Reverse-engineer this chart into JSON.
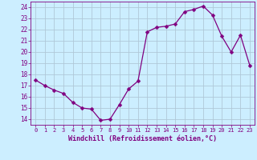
{
  "x": [
    0,
    1,
    2,
    3,
    4,
    5,
    6,
    7,
    8,
    9,
    10,
    11,
    12,
    13,
    14,
    15,
    16,
    17,
    18,
    19,
    20,
    21,
    22,
    23
  ],
  "y": [
    17.5,
    17.0,
    16.6,
    16.3,
    15.5,
    15.0,
    14.9,
    13.9,
    14.0,
    15.3,
    16.7,
    17.4,
    21.8,
    22.2,
    22.3,
    22.5,
    23.6,
    23.8,
    24.1,
    23.3,
    21.4,
    20.0,
    21.5,
    18.8
  ],
  "line_color": "#800080",
  "marker": "D",
  "marker_size": 2.5,
  "bg_color": "#cceeff",
  "grid_color": "#b0c8d8",
  "xlabel": "Windchill (Refroidissement éolien,°C)",
  "xlabel_color": "#800080",
  "tick_color": "#800080",
  "ylim": [
    13.5,
    24.5
  ],
  "xlim": [
    -0.5,
    23.5
  ],
  "yticks": [
    14,
    15,
    16,
    17,
    18,
    19,
    20,
    21,
    22,
    23,
    24
  ],
  "xticks": [
    0,
    1,
    2,
    3,
    4,
    5,
    6,
    7,
    8,
    9,
    10,
    11,
    12,
    13,
    14,
    15,
    16,
    17,
    18,
    19,
    20,
    21,
    22,
    23
  ]
}
